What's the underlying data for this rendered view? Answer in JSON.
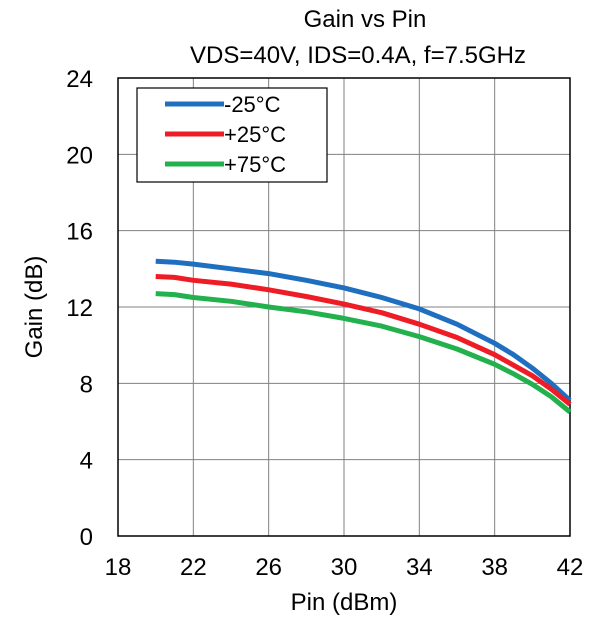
{
  "chart_data": {
    "type": "line",
    "title": "Gain vs Pin",
    "subtitle": "VDS=40V, IDS=0.4A, f=7.5GHz",
    "xlabel": "Pin (dBm)",
    "ylabel": "Gain (dB)",
    "xlim": [
      18,
      42
    ],
    "ylim": [
      0,
      24
    ],
    "xticks": [
      "18",
      "22",
      "26",
      "30",
      "34",
      "38",
      "42"
    ],
    "yticks": [
      "0",
      "4",
      "8",
      "12",
      "16",
      "20",
      "24"
    ],
    "grid": true,
    "legend_position": "top-left",
    "series": [
      {
        "name": "-25°C",
        "color": "#1f6fc0",
        "x": [
          20,
          21,
          22,
          24,
          26,
          28,
          30,
          32,
          34,
          36,
          38,
          39,
          40,
          41,
          42
        ],
        "y": [
          14.4,
          14.35,
          14.25,
          14.0,
          13.75,
          13.4,
          13.0,
          12.5,
          11.9,
          11.1,
          10.1,
          9.5,
          8.8,
          8.0,
          7.1
        ]
      },
      {
        "name": "+25°C",
        "color": "#ee1c25",
        "x": [
          20,
          21,
          22,
          24,
          26,
          28,
          30,
          32,
          34,
          36,
          38,
          39,
          40,
          41,
          42
        ],
        "y": [
          13.6,
          13.55,
          13.4,
          13.2,
          12.9,
          12.55,
          12.15,
          11.7,
          11.1,
          10.4,
          9.5,
          8.95,
          8.4,
          7.7,
          6.9
        ]
      },
      {
        "name": "+75°C",
        "color": "#22b14c",
        "x": [
          20,
          21,
          22,
          24,
          26,
          28,
          30,
          32,
          34,
          36,
          38,
          39,
          40,
          41,
          42
        ],
        "y": [
          12.7,
          12.65,
          12.5,
          12.3,
          12.0,
          11.75,
          11.4,
          11.0,
          10.45,
          9.8,
          9.0,
          8.5,
          7.95,
          7.3,
          6.5
        ]
      }
    ]
  }
}
